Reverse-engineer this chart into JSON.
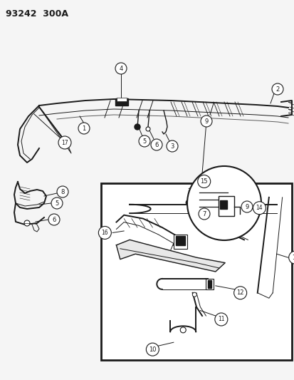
{
  "title": "93242  300A",
  "bg": "#f5f5f5",
  "fg": "#1a1a1a",
  "fig_w": 4.14,
  "fig_h": 5.33,
  "dpi": 100
}
